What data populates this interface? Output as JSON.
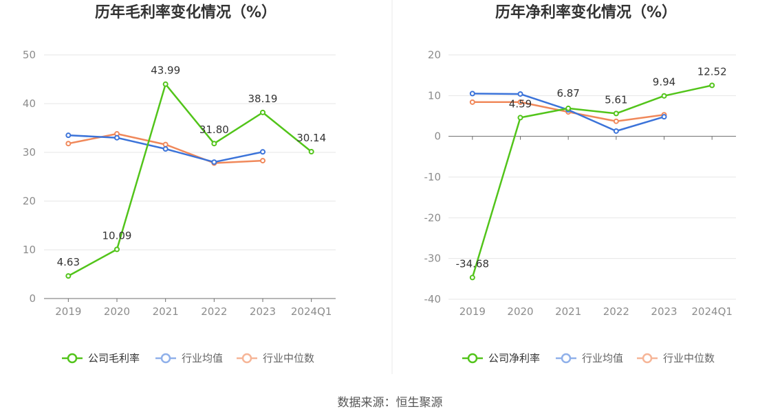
{
  "footer": {
    "source": "数据来源：恒生聚源"
  },
  "chart_data": [
    {
      "type": "line",
      "title": "历年毛利率变化情况（%）",
      "categories": [
        "2019",
        "2020",
        "2021",
        "2022",
        "2023",
        "2024Q1"
      ],
      "ylim": [
        0,
        50
      ],
      "yticks": [
        0,
        10,
        20,
        30,
        40,
        50
      ],
      "grid": true,
      "legend_position": "bottom",
      "series": [
        {
          "name": "公司毛利率",
          "color": "#52c41a",
          "values": [
            4.63,
            10.09,
            43.99,
            31.8,
            38.19,
            30.14
          ],
          "labels": [
            "4.63",
            "10.09",
            "43.99",
            "31.80",
            "38.19",
            "30.14"
          ]
        },
        {
          "name": "行业均值",
          "color": "#3b73d9",
          "values": [
            33.5,
            33.0,
            30.7,
            28.0,
            30.1,
            null
          ]
        },
        {
          "name": "行业中位数",
          "color": "#f0885a",
          "values": [
            31.8,
            33.8,
            31.6,
            27.8,
            28.3,
            null
          ]
        }
      ]
    },
    {
      "type": "line",
      "title": "历年净利率变化情况（%）",
      "categories": [
        "2019",
        "2020",
        "2021",
        "2022",
        "2023",
        "2024Q1"
      ],
      "ylim": [
        -40,
        20
      ],
      "yticks": [
        -40,
        -30,
        -20,
        -10,
        0,
        10,
        20
      ],
      "grid": true,
      "legend_position": "bottom",
      "series": [
        {
          "name": "公司净利率",
          "color": "#52c41a",
          "values": [
            -34.68,
            4.59,
            6.87,
            5.61,
            9.94,
            12.52
          ],
          "labels": [
            "-34.68",
            "4.59",
            "6.87",
            "5.61",
            "9.94",
            "12.52"
          ]
        },
        {
          "name": "行业均值",
          "color": "#3b73d9",
          "values": [
            10.5,
            10.4,
            6.5,
            1.3,
            4.8,
            null
          ]
        },
        {
          "name": "行业中位数",
          "color": "#f0885a",
          "values": [
            8.4,
            8.4,
            6.0,
            3.7,
            5.3,
            null
          ]
        }
      ]
    }
  ]
}
